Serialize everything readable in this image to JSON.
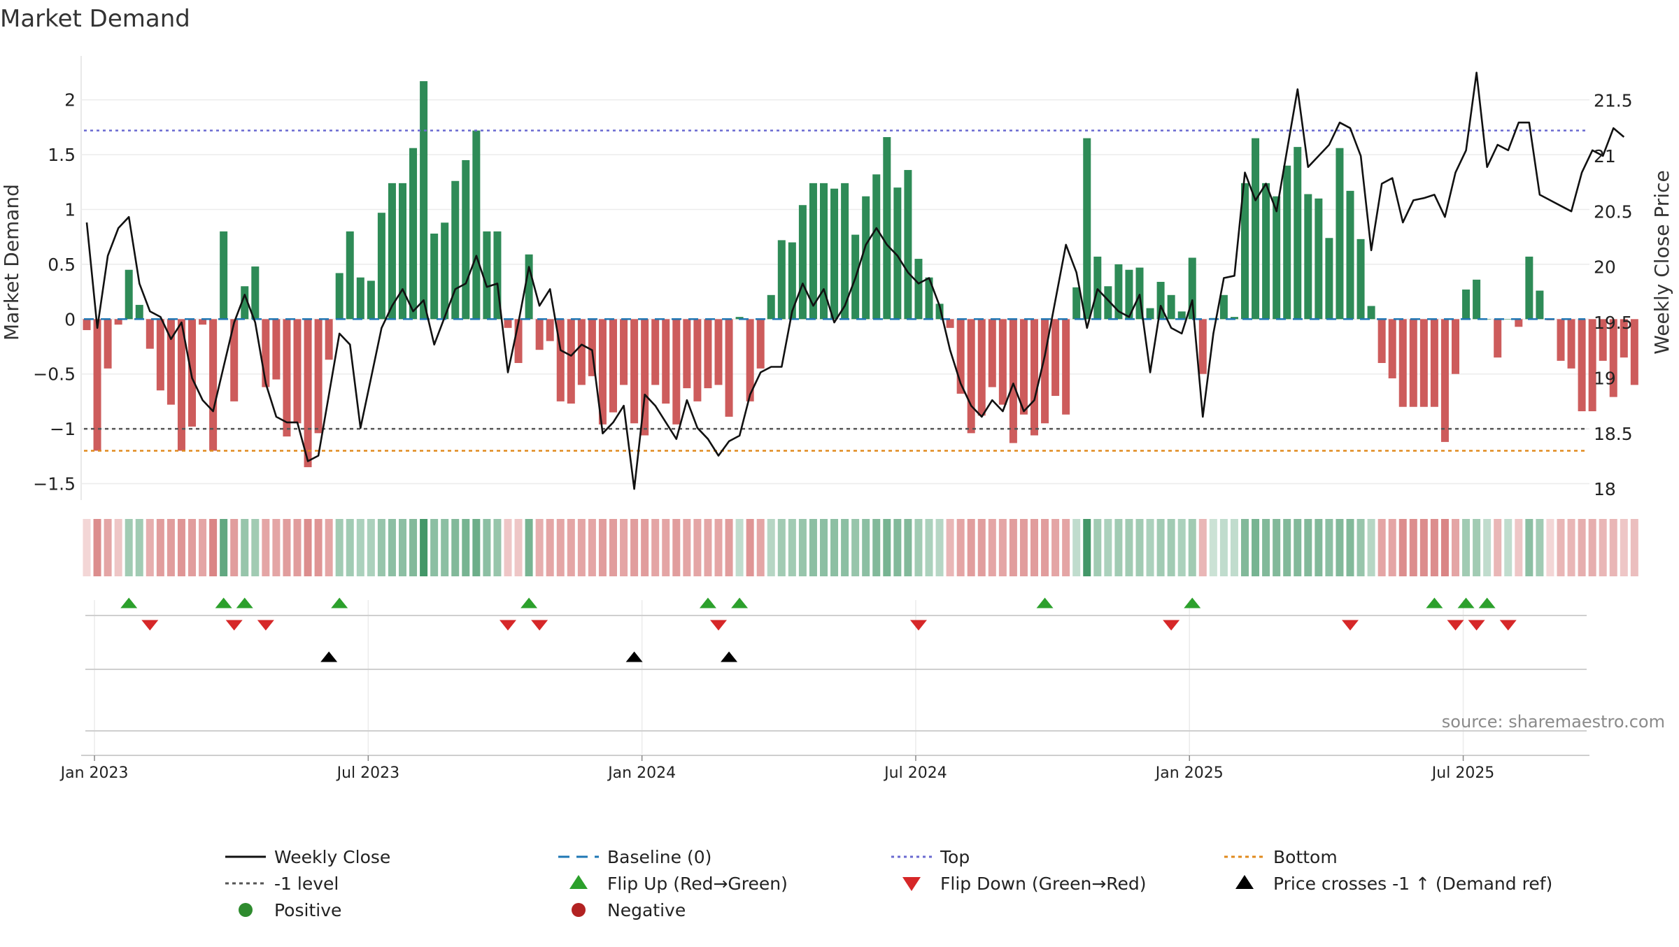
{
  "title": "Market Demand",
  "source": "source: sharemaestro.com",
  "colors": {
    "pos": "#2e8b57",
    "neg": "#cd5c5c",
    "top": "#6a6ad0",
    "bottom": "#e08a1e",
    "baseline": "#1f77b4",
    "minus1": "#555555",
    "price": "#111111",
    "flipUp": "#2ca02c",
    "flipDown": "#d62728",
    "cross": "#000000",
    "legendPos": "#2e8b2e",
    "legendNeg": "#b22222"
  },
  "chart_data": {
    "type": "bar",
    "title": "Market Demand",
    "ylabel": "Market Demand",
    "y2label": "Weekly Close Price",
    "ylim": [
      -1.65,
      2.4
    ],
    "y2lim": [
      17.9,
      21.9
    ],
    "yticks": [
      {
        "v": 2,
        "t": "2"
      },
      {
        "v": 1.5,
        "t": "1.5"
      },
      {
        "v": 1,
        "t": "1"
      },
      {
        "v": 0.5,
        "t": "0.5"
      },
      {
        "v": 0,
        "t": "0"
      },
      {
        "v": -0.5,
        "t": "−0.5"
      },
      {
        "v": -1,
        "t": "−1"
      },
      {
        "v": -1.5,
        "t": "−1.5"
      }
    ],
    "y2ticks": [
      {
        "v": 21.5,
        "t": "21.5"
      },
      {
        "v": 21,
        "t": "21"
      },
      {
        "v": 20.5,
        "t": "20.5"
      },
      {
        "v": 20,
        "t": "20"
      },
      {
        "v": 19.5,
        "t": "19.5"
      },
      {
        "v": 19,
        "t": "19"
      },
      {
        "v": 18.5,
        "t": "18.5"
      },
      {
        "v": 18,
        "t": "18"
      }
    ],
    "xticks": [
      {
        "w": 1,
        "t": "Jan 2023"
      },
      {
        "w": 27,
        "t": "Jul 2023"
      },
      {
        "w": 53,
        "t": "Jan 2024"
      },
      {
        "w": 79,
        "t": "Jul 2024"
      },
      {
        "w": 105,
        "t": "Jan 2025"
      },
      {
        "w": 131,
        "t": "Jul 2025"
      }
    ],
    "levels": {
      "top": 1.72,
      "bottom": -1.2,
      "minus1": -1.0,
      "baseline": 0
    },
    "demand": [
      -0.1,
      -1.2,
      -0.45,
      -0.05,
      0.45,
      0.13,
      -0.27,
      -0.65,
      -0.78,
      -1.2,
      -0.98,
      -0.05,
      -1.2,
      0.8,
      -0.75,
      0.3,
      0.48,
      -0.62,
      -0.55,
      -1.07,
      -0.95,
      -1.35,
      -1.04,
      -0.37,
      0.42,
      0.8,
      0.38,
      0.35,
      0.97,
      1.24,
      1.24,
      1.56,
      2.17,
      0.78,
      0.88,
      1.26,
      1.45,
      1.72,
      0.8,
      0.8,
      -0.08,
      -0.4,
      0.59,
      -0.28,
      -0.2,
      -0.75,
      -0.77,
      -0.6,
      -0.52,
      -0.96,
      -0.85,
      -0.6,
      -0.95,
      -1.06,
      -0.6,
      -0.77,
      -0.96,
      -0.63,
      -0.75,
      -0.63,
      -0.6,
      -0.89,
      0.02,
      -0.75,
      -0.45,
      0.22,
      0.72,
      0.7,
      1.04,
      1.24,
      1.24,
      1.19,
      1.24,
      0.77,
      1.12,
      1.32,
      1.66,
      1.2,
      1.36,
      0.55,
      0.38,
      0.14,
      -0.08,
      -0.68,
      -1.04,
      -0.88,
      -0.62,
      -0.78,
      -1.13,
      -0.87,
      -1.06,
      -0.95,
      -0.7,
      -0.87,
      0.29,
      1.65,
      0.57,
      0.3,
      0.5,
      0.45,
      0.47,
      0.1,
      0.34,
      0.22,
      0.07,
      0.56,
      -0.5,
      0.01,
      0.22,
      0.02,
      1.24,
      1.65,
      1.24,
      1.12,
      1.4,
      1.57,
      1.14,
      1.1,
      0.74,
      1.56,
      1.17,
      0.73,
      0.12,
      -0.4,
      -0.54,
      -0.8,
      -0.8,
      -0.8,
      -0.8,
      -1.12,
      -0.5,
      0.27,
      0.36,
      0.0,
      -0.35,
      0.0,
      -0.07,
      0.57,
      0.26,
      -0.01,
      -0.38,
      -0.45,
      -0.84,
      -0.84,
      -0.38,
      -0.71,
      -0.35,
      -0.6
    ],
    "price": [
      20.4,
      19.45,
      20.1,
      20.35,
      20.45,
      19.85,
      19.6,
      19.55,
      19.35,
      19.5,
      19.0,
      18.8,
      18.7,
      19.1,
      19.5,
      19.75,
      19.5,
      18.95,
      18.65,
      18.6,
      18.6,
      18.25,
      18.3,
      18.85,
      19.4,
      19.3,
      18.55,
      19.0,
      19.45,
      19.65,
      19.8,
      19.6,
      19.7,
      19.3,
      19.55,
      19.8,
      19.85,
      20.1,
      19.82,
      19.85,
      19.05,
      19.5,
      20.0,
      19.65,
      19.8,
      19.25,
      19.2,
      19.3,
      19.25,
      18.5,
      18.6,
      18.75,
      18.0,
      18.85,
      18.75,
      18.6,
      18.45,
      18.8,
      18.55,
      18.45,
      18.3,
      18.43,
      18.48,
      18.85,
      19.05,
      19.1,
      19.1,
      19.6,
      19.85,
      19.65,
      19.8,
      19.5,
      19.65,
      19.9,
      20.2,
      20.35,
      20.2,
      20.1,
      19.95,
      19.85,
      19.9,
      19.65,
      19.25,
      18.95,
      18.75,
      18.65,
      18.8,
      18.7,
      18.95,
      18.7,
      18.8,
      19.2,
      19.7,
      20.2,
      19.95,
      19.45,
      19.8,
      19.7,
      19.6,
      19.55,
      19.75,
      19.05,
      19.65,
      19.45,
      19.4,
      19.7,
      18.65,
      19.4,
      19.9,
      19.92,
      20.85,
      20.6,
      20.75,
      20.5,
      21.05,
      21.6,
      20.9,
      21.0,
      21.1,
      21.3,
      21.25,
      21.0,
      20.15,
      20.75,
      20.8,
      20.4,
      20.6,
      20.62,
      20.65,
      20.45,
      20.85,
      21.05,
      21.75,
      20.9,
      21.1,
      21.05,
      21.3,
      21.3,
      20.65,
      20.6,
      20.55,
      20.5,
      20.85,
      21.05,
      21.0,
      21.25,
      21.17
    ],
    "intensity": [
      0.25,
      0.7,
      0.55,
      0.35,
      0.45,
      0.45,
      0.5,
      0.6,
      0.6,
      0.65,
      0.6,
      0.55,
      0.75,
      0.75,
      0.6,
      0.5,
      0.45,
      0.55,
      0.55,
      0.6,
      0.6,
      0.7,
      0.65,
      0.55,
      0.45,
      0.45,
      0.4,
      0.4,
      0.5,
      0.55,
      0.55,
      0.6,
      0.9,
      0.55,
      0.55,
      0.6,
      0.65,
      0.7,
      0.55,
      0.5,
      0.35,
      0.35,
      0.65,
      0.5,
      0.55,
      0.55,
      0.55,
      0.55,
      0.55,
      0.6,
      0.6,
      0.55,
      0.6,
      0.6,
      0.55,
      0.55,
      0.6,
      0.55,
      0.55,
      0.55,
      0.55,
      0.6,
      0.3,
      0.65,
      0.55,
      0.35,
      0.45,
      0.45,
      0.5,
      0.55,
      0.55,
      0.55,
      0.55,
      0.5,
      0.55,
      0.6,
      0.65,
      0.6,
      0.6,
      0.45,
      0.4,
      0.35,
      0.45,
      0.55,
      0.6,
      0.6,
      0.55,
      0.55,
      0.6,
      0.6,
      0.6,
      0.6,
      0.55,
      0.55,
      0.3,
      0.9,
      0.45,
      0.4,
      0.45,
      0.45,
      0.45,
      0.4,
      0.45,
      0.45,
      0.4,
      0.45,
      0.45,
      0.25,
      0.3,
      0.3,
      0.6,
      0.65,
      0.6,
      0.6,
      0.6,
      0.6,
      0.6,
      0.6,
      0.55,
      0.6,
      0.6,
      0.5,
      0.35,
      0.55,
      0.55,
      0.7,
      0.7,
      0.7,
      0.7,
      0.75,
      0.55,
      0.45,
      0.45,
      0.3,
      0.45,
      0.3,
      0.35,
      0.55,
      0.45,
      0.25,
      0.45,
      0.45,
      0.5,
      0.5,
      0.45,
      0.45,
      0.35,
      0.4
    ],
    "flip_up": [
      4,
      13,
      15,
      24,
      42,
      59,
      62,
      91,
      105,
      128,
      131,
      133
    ],
    "flip_down": [
      6,
      14,
      17,
      40,
      43,
      60,
      79,
      103,
      120,
      130,
      132,
      135
    ],
    "price_cross": [
      23,
      52,
      61
    ]
  },
  "legend": {
    "weekly_close": "Weekly Close",
    "baseline": "Baseline (0)",
    "top": "Top",
    "bottom": "Bottom",
    "minus1": "-1 level",
    "flip_up": "Flip Up (Red→Green)",
    "flip_down": "Flip Down (Green→Red)",
    "price_cross": "Price crosses -1 ↑ (Demand ref)",
    "positive": "Positive",
    "negative": "Negative"
  }
}
